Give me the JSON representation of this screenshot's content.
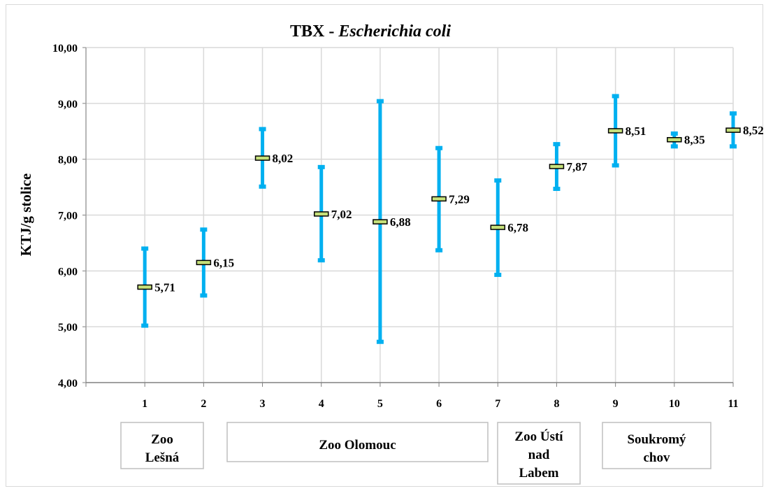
{
  "chart_data": {
    "type": "error-bar",
    "title_prefix": "TBX - ",
    "title_italic": "Escherichia coli",
    "ylabel": "KTJ/g stolice",
    "ylim": [
      4,
      10
    ],
    "ytick_labels": [
      "4,00",
      "5,00",
      "6,00",
      "7,00",
      "8,00",
      "9,00",
      "10,00"
    ],
    "grid": true,
    "categories": [
      "1",
      "2",
      "3",
      "4",
      "5",
      "6",
      "7",
      "8",
      "9",
      "10",
      "11"
    ],
    "mean": [
      5.71,
      6.15,
      8.02,
      7.02,
      6.88,
      7.29,
      6.78,
      7.87,
      8.51,
      8.35,
      8.52
    ],
    "min": [
      5.02,
      5.56,
      7.51,
      6.19,
      4.73,
      6.37,
      5.93,
      7.47,
      7.89,
      8.23,
      8.23
    ],
    "max": [
      6.4,
      6.74,
      8.54,
      7.86,
      9.04,
      8.2,
      7.62,
      8.27,
      9.13,
      8.46,
      8.82
    ],
    "data_labels": [
      "5,71",
      "6,15",
      "8,02",
      "7,02",
      "6,88",
      "7,29",
      "6,78",
      "7,87",
      "8,51",
      "8,35",
      "8,52"
    ],
    "groups": [
      {
        "lines": [
          "Zoo",
          "Lešná"
        ],
        "from": 1,
        "to": 2
      },
      {
        "lines": [
          "Zoo Olomouc"
        ],
        "from": 3,
        "to": 7
      },
      {
        "lines": [
          "Zoo Ústí",
          "nad",
          "Labem"
        ],
        "from": 8,
        "to": 8
      },
      {
        "lines": [
          "Soukromý",
          "chov"
        ],
        "from": 9,
        "to": 11
      }
    ],
    "colors": {
      "bar": "#00b0f0",
      "mean_fill": "#c6e07a",
      "mean_stroke": "#000000",
      "grid": "#d9d9d9",
      "axis": "#808080"
    }
  }
}
